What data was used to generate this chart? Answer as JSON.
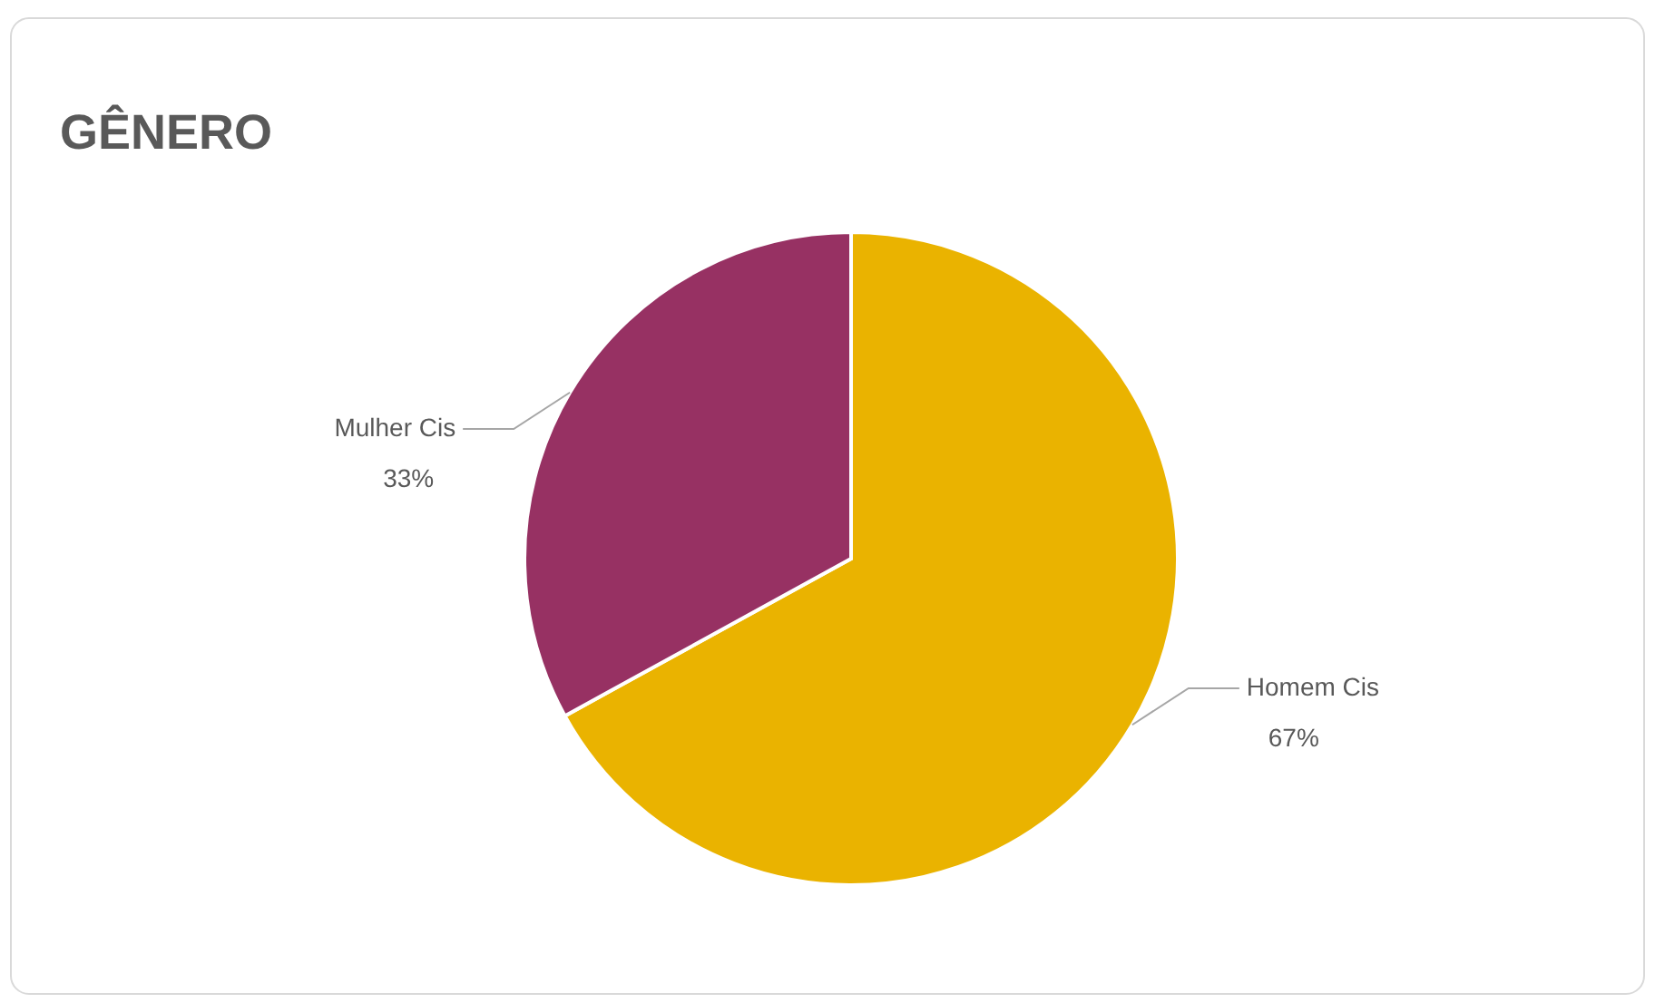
{
  "chart_data": {
    "type": "pie",
    "title": "GÊNERO",
    "categories": [
      "Homem Cis",
      "Mulher Cis"
    ],
    "values": [
      67,
      33
    ],
    "colors": [
      "#eab300",
      "#973163"
    ],
    "value_labels": [
      "67%",
      "33%"
    ]
  }
}
